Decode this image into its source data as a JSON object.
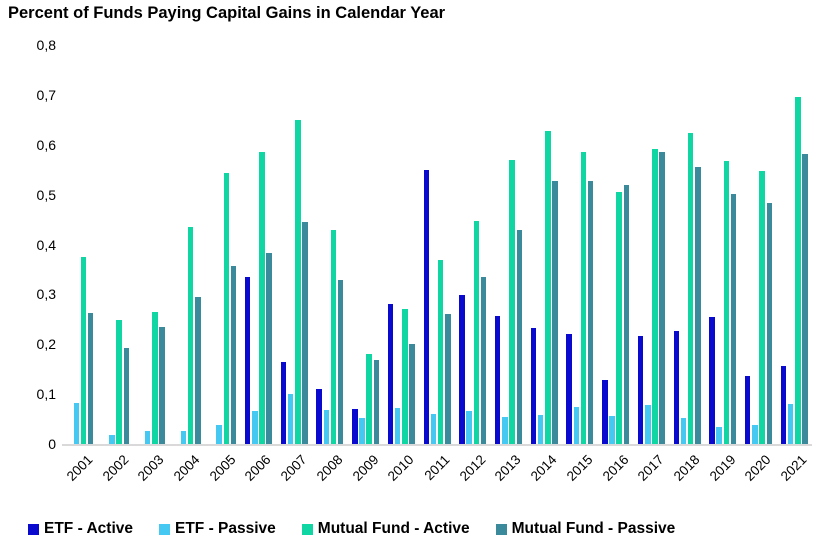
{
  "chart_data": {
    "type": "bar",
    "title": "Percent of Funds Paying Capital Gains in Calendar Year",
    "xlabel": "",
    "ylabel": "",
    "ylim": [
      0,
      0.8
    ],
    "ytick_labels": [
      "0",
      "0,1",
      "0,2",
      "0,3",
      "0,4",
      "0,5",
      "0,6",
      "0,7",
      "0,8"
    ],
    "decimal_separator": ",",
    "grid": false,
    "legend_position": "bottom",
    "axis_line_color": "#D9D9D9",
    "categories": [
      "2001",
      "2002",
      "2003",
      "2004",
      "2005",
      "2006",
      "2007",
      "2008",
      "2009",
      "2010",
      "2011",
      "2012",
      "2013",
      "2014",
      "2015",
      "2016",
      "2017",
      "2018",
      "2019",
      "2020",
      "2021"
    ],
    "series": [
      {
        "name": "ETF - Active",
        "color": "#0A0ACF",
        "values": [
          0,
          0,
          0,
          0,
          0,
          0.335,
          0.165,
          0.11,
          0.07,
          0.28,
          0.55,
          0.298,
          0.256,
          0.233,
          0.22,
          0.128,
          0.217,
          0.226,
          0.254,
          0.137,
          0.157
        ]
      },
      {
        "name": "ETF - Passive",
        "color": "#45C9F2",
        "values": [
          0.082,
          0.018,
          0.026,
          0.027,
          0.038,
          0.067,
          0.1,
          0.068,
          0.053,
          0.072,
          0.06,
          0.066,
          0.055,
          0.059,
          0.075,
          0.057,
          0.079,
          0.052,
          0.034,
          0.038,
          0.08
        ]
      },
      {
        "name": "Mutual Fund - Active",
        "color": "#10D6A3",
        "values": [
          0.374,
          0.249,
          0.264,
          0.435,
          0.543,
          0.585,
          0.649,
          0.43,
          0.18,
          0.271,
          0.369,
          0.448,
          0.57,
          0.627,
          0.586,
          0.505,
          0.591,
          0.624,
          0.568,
          0.548,
          0.696
        ]
      },
      {
        "name": "Mutual Fund - Passive",
        "color": "#3B8A9B",
        "values": [
          0.263,
          0.192,
          0.234,
          0.295,
          0.356,
          0.382,
          0.445,
          0.328,
          0.168,
          0.2,
          0.261,
          0.335,
          0.43,
          0.528,
          0.527,
          0.52,
          0.585,
          0.555,
          0.502,
          0.483,
          0.582
        ]
      }
    ]
  }
}
